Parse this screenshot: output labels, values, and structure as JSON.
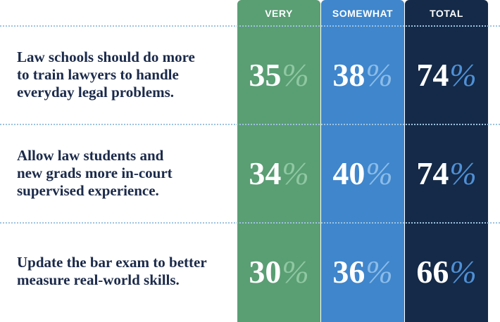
{
  "colors": {
    "very": "#5a9e74",
    "somewhat": "#3f86cc",
    "total": "#142a48",
    "pct_very": "#8fc8a2",
    "pct_somewhat": "#8cbce8",
    "pct_total": "#4f90d6",
    "label_text": "#1b2a4a"
  },
  "chart_data": {
    "type": "table",
    "columns": [
      "VERY",
      "SOMEWHAT",
      "TOTAL"
    ],
    "rows": [
      {
        "label_lines": [
          "Law schools should do more",
          "to train lawyers to handle",
          "everyday legal problems."
        ],
        "values": [
          35,
          38,
          74
        ]
      },
      {
        "label_lines": [
          "Allow law students and",
          "new grads more in-court",
          "supervised experience."
        ],
        "values": [
          34,
          40,
          74
        ]
      },
      {
        "label_lines": [
          "Update the bar exam to better",
          "measure real-world skills."
        ],
        "values": [
          30,
          36,
          66
        ]
      }
    ],
    "unit_symbol": "%"
  }
}
